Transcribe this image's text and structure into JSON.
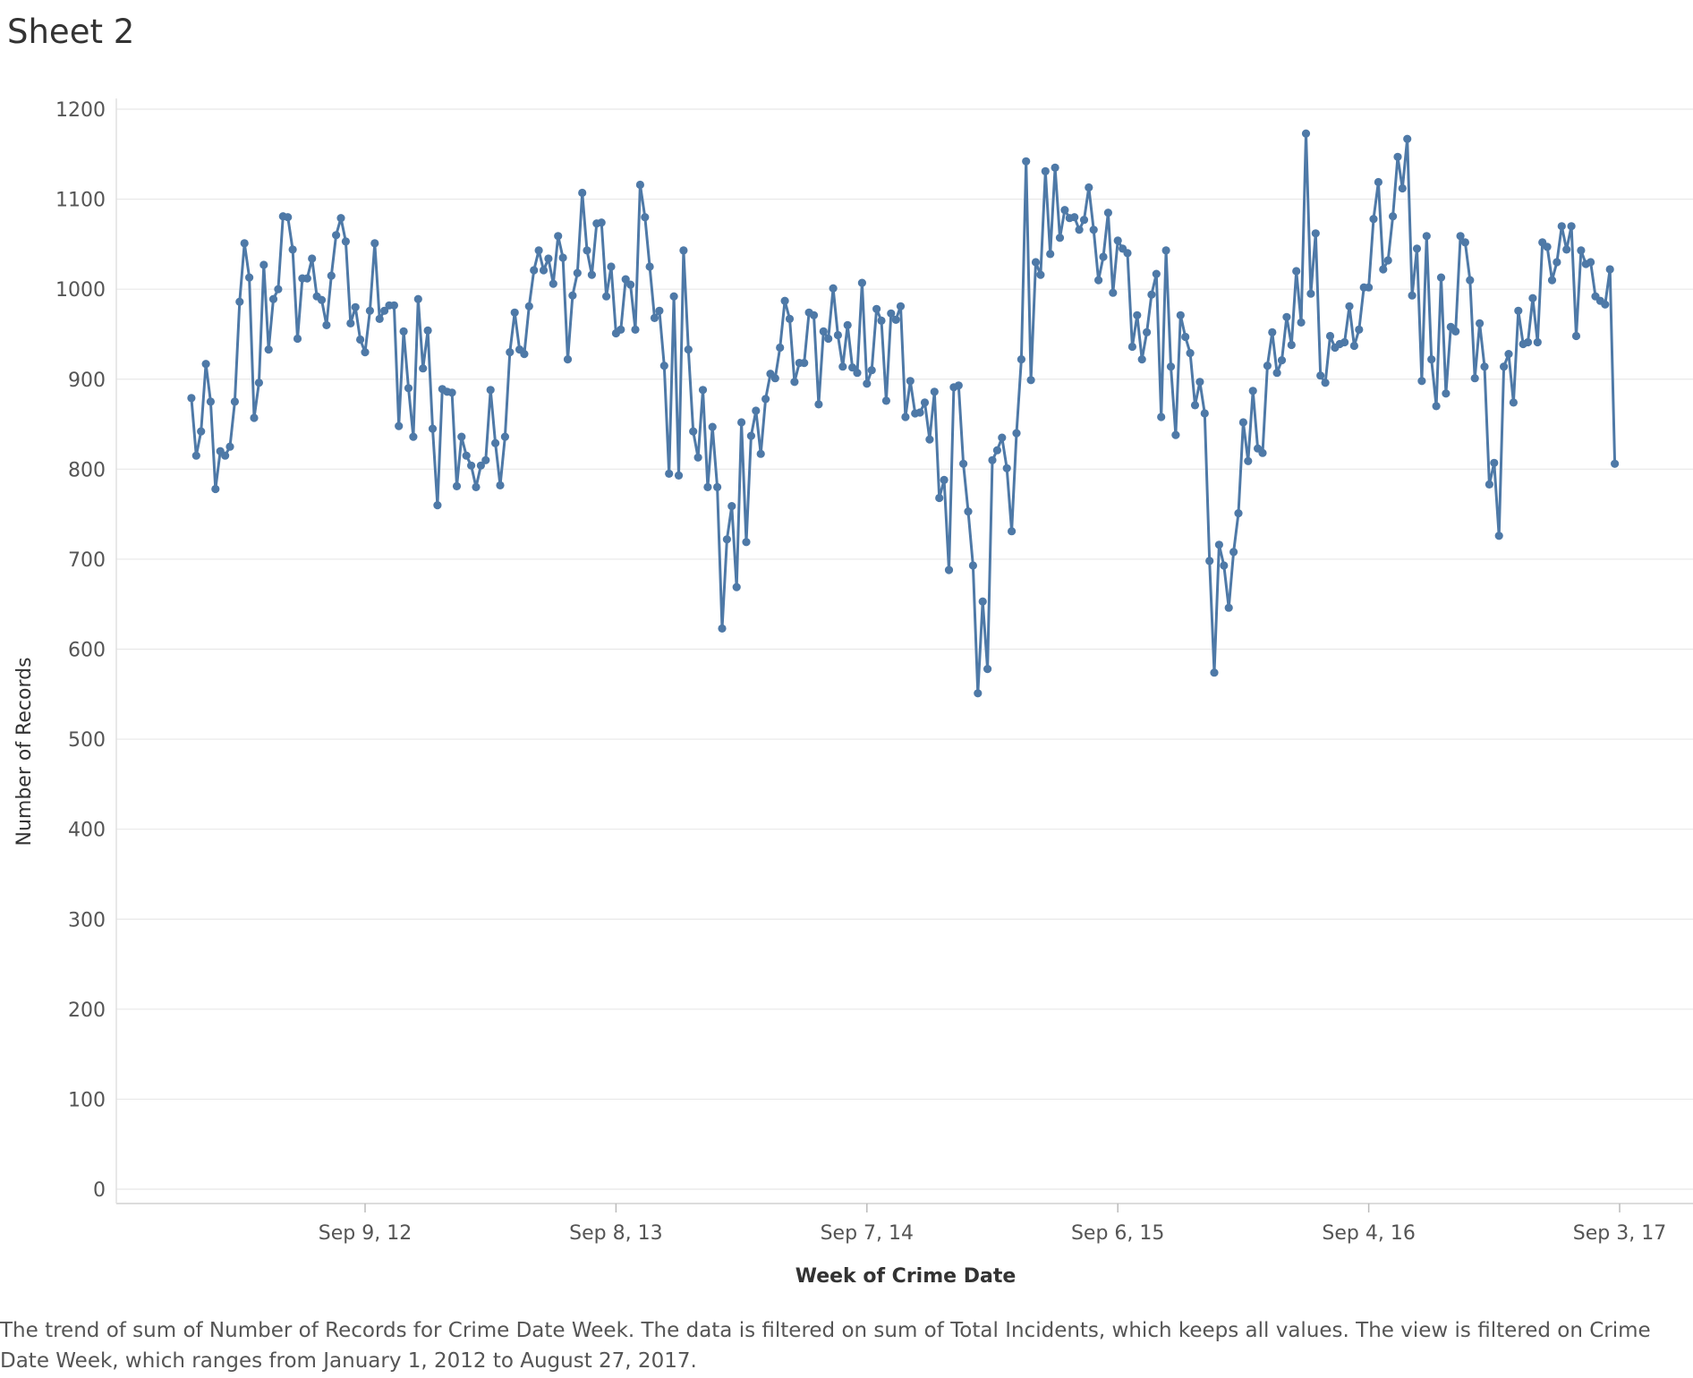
{
  "sheet": {
    "title": "Sheet 2"
  },
  "caption": "The trend of sum of Number of Records for Crime Date Week.  The data is filtered on sum of Total Incidents, which keeps all values. The view is filtered on Crime Date Week, which ranges from January 1, 2012 to August 27, 2017.",
  "colors": {
    "line": "#4e79a7",
    "grid": "#e8e8e8",
    "axis": "#d0d0d0"
  },
  "chart_data": {
    "type": "line",
    "title": "",
    "xlabel": "Week of Crime Date",
    "ylabel": "Number of Records",
    "ylim": [
      0,
      1200
    ],
    "y_ticks": [
      0,
      100,
      200,
      300,
      400,
      500,
      600,
      700,
      800,
      900,
      1000,
      1100,
      1200
    ],
    "x_start": "2012-01-01",
    "x_end": "2017-08-27",
    "x_interval": "week",
    "x_ticks": [
      {
        "label": "Sep 9, 12",
        "date": "2012-09-09"
      },
      {
        "label": "Sep 8, 13",
        "date": "2013-09-08"
      },
      {
        "label": "Sep 7, 14",
        "date": "2014-09-07"
      },
      {
        "label": "Sep 6, 15",
        "date": "2015-09-06"
      },
      {
        "label": "Sep 4, 16",
        "date": "2016-09-04"
      },
      {
        "label": "Sep 3, 17",
        "date": "2017-09-03"
      }
    ],
    "grid": true,
    "markers": true,
    "series": [
      {
        "values": [
          879,
          815,
          842,
          917,
          875,
          778,
          820,
          815,
          825,
          875,
          986,
          1051,
          1013,
          857,
          896,
          1027,
          933,
          989,
          1000,
          1081,
          1080,
          1044,
          945,
          1012,
          1012,
          1034,
          992,
          988,
          960,
          1015,
          1060,
          1079,
          1053,
          962,
          980,
          944,
          930,
          976,
          1051,
          967,
          976,
          982,
          982,
          848,
          953,
          890,
          836,
          989,
          912,
          954,
          845,
          760,
          889,
          886,
          885,
          781,
          836,
          815,
          804,
          780,
          804,
          810,
          888,
          829,
          782,
          836,
          930,
          974,
          933,
          928,
          981,
          1021,
          1043,
          1021,
          1034,
          1006,
          1059,
          1035,
          922,
          993,
          1018,
          1107,
          1043,
          1016,
          1073,
          1074,
          992,
          1025,
          951,
          955,
          1011,
          1005,
          955,
          1116,
          1080,
          1025,
          968,
          976,
          915,
          795,
          992,
          793,
          1043,
          933,
          842,
          813,
          888,
          780,
          847,
          780,
          623,
          722,
          759,
          669,
          852,
          719,
          837,
          865,
          817,
          878,
          906,
          901,
          935,
          987,
          967,
          897,
          918,
          918,
          974,
          971,
          872,
          953,
          945,
          1001,
          949,
          914,
          960,
          913,
          907,
          1007,
          895,
          910,
          978,
          965,
          876,
          973,
          966,
          981,
          858,
          898,
          862,
          863,
          874,
          833,
          886,
          768,
          788,
          688,
          891,
          893,
          806,
          753,
          693,
          551,
          653,
          578,
          810,
          821,
          835,
          801,
          731,
          840,
          922,
          1142,
          899,
          1030,
          1016,
          1131,
          1039,
          1135,
          1057,
          1088,
          1079,
          1080,
          1066,
          1077,
          1113,
          1066,
          1010,
          1036,
          1085,
          996,
          1054,
          1045,
          1040,
          936,
          971,
          922,
          952,
          994,
          1017,
          858,
          1043,
          914,
          838,
          971,
          947,
          929,
          871,
          897,
          862,
          698,
          574,
          716,
          693,
          646,
          708,
          751,
          852,
          809,
          887,
          823,
          818,
          915,
          952,
          907,
          921,
          969,
          938,
          1020,
          963,
          1173,
          995,
          1062,
          904,
          896,
          948,
          935,
          939,
          941,
          981,
          937,
          955,
          1002,
          1002,
          1078,
          1119,
          1022,
          1032,
          1081,
          1147,
          1112,
          1167,
          993,
          1045,
          898,
          1059,
          922,
          870,
          1013,
          884,
          958,
          953,
          1059,
          1052,
          1010,
          901,
          962,
          914,
          783,
          807,
          726,
          914,
          928,
          874,
          976,
          939,
          941,
          990,
          941,
          1052,
          1047,
          1010,
          1030,
          1070,
          1044,
          1070,
          948,
          1043,
          1028,
          1030,
          992,
          987,
          983,
          1022,
          806
        ]
      }
    ]
  }
}
